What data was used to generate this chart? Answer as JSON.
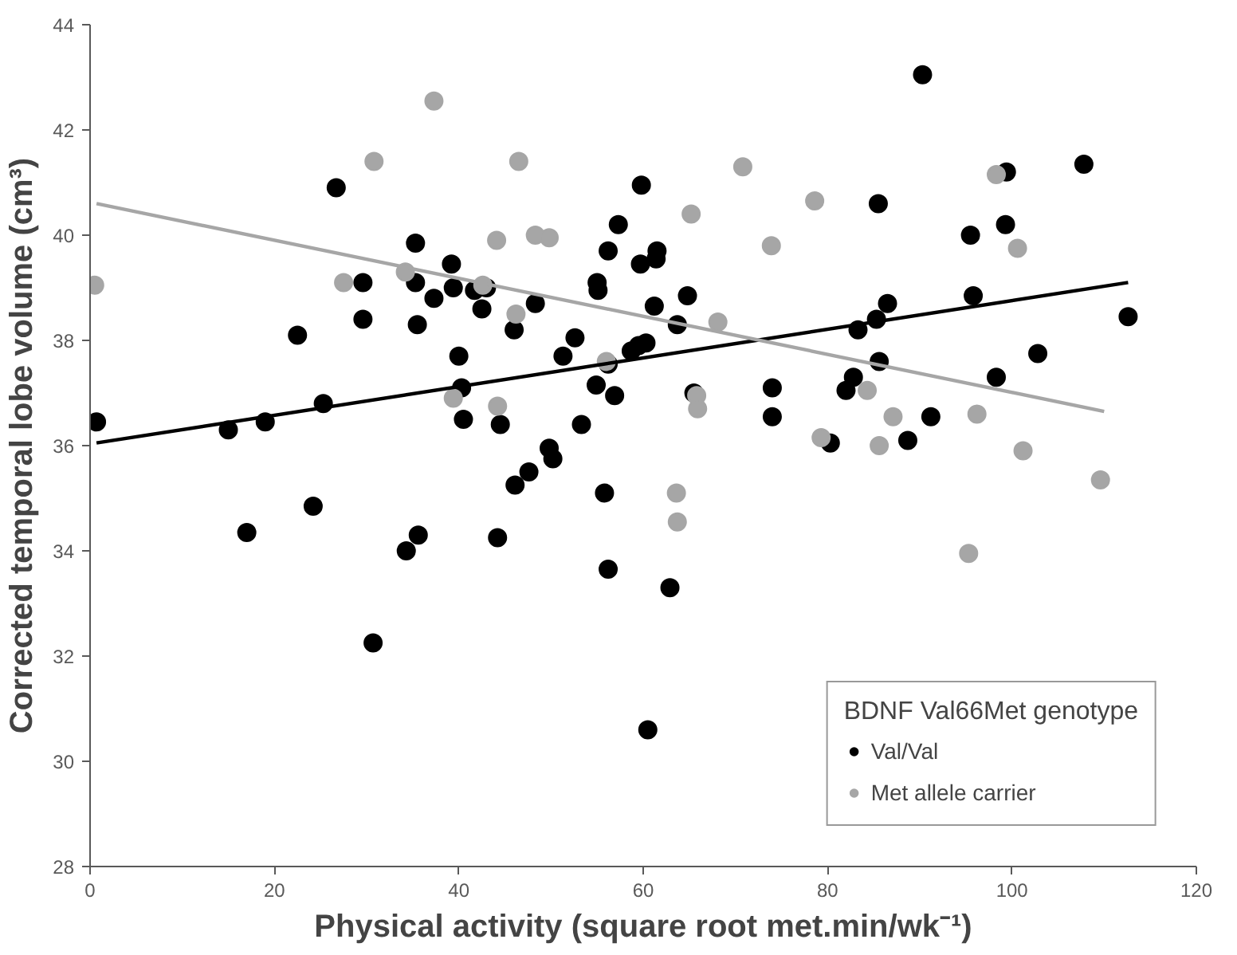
{
  "chart_data": {
    "type": "scatter",
    "xlabel": "Physical activity (square root met.min/wk⁻¹)",
    "ylabel": "Corrected temporal lobe volume (cm³)",
    "legend_title": "BDNF Val66Met genotype",
    "legend": "bottom right",
    "grid": false,
    "marker": "circle",
    "xlim": [
      0,
      120
    ],
    "xticks": [
      0,
      20,
      40,
      60,
      80,
      100,
      120
    ],
    "ylim": [
      28,
      44
    ],
    "yticks": [
      28,
      30,
      32,
      34,
      36,
      38,
      40,
      42,
      44
    ],
    "series": [
      {
        "name": "Val/Val",
        "color": "#000000",
        "x": [
          0.7,
          15,
          17,
          19,
          22.5,
          24.2,
          25.3,
          26.7,
          29.6,
          29.6,
          30.7,
          34.3,
          35.3,
          35.3,
          35.5,
          35.6,
          37.3,
          39.2,
          39.4,
          40,
          40.3,
          40.5,
          41.7,
          42.5,
          43,
          44.2,
          44.5,
          46,
          46.1,
          47.6,
          48.3,
          49.8,
          50.2,
          51.3,
          52.6,
          53.3,
          54.9,
          55,
          55.1,
          55.8,
          56.2,
          56.2,
          56.2,
          56.9,
          57.3,
          58.7,
          59.5,
          59.7,
          59.8,
          60.3,
          60.5,
          61.2,
          61.4,
          61.5,
          62.9,
          63.7,
          64.8,
          65.5,
          74,
          74,
          80.3,
          82,
          82.8,
          83.3,
          85.3,
          85.5,
          85.6,
          86.5,
          88.7,
          90.3,
          91.2,
          95.5,
          95.8,
          98.3,
          99.4,
          99.3,
          102.8,
          107.8,
          112.6
        ],
        "values": [
          36.45,
          36.3,
          34.35,
          36.45,
          38.1,
          34.85,
          36.8,
          40.9,
          39.1,
          38.4,
          32.25,
          34.0,
          39.85,
          39.1,
          38.3,
          34.3,
          38.8,
          39.45,
          39.0,
          37.7,
          37.1,
          36.5,
          38.95,
          38.6,
          39.0,
          34.25,
          36.4,
          38.2,
          35.25,
          35.5,
          38.7,
          35.95,
          35.75,
          37.7,
          38.05,
          36.4,
          37.15,
          39.1,
          38.95,
          35.1,
          37.55,
          39.7,
          33.65,
          36.95,
          40.2,
          37.8,
          37.9,
          39.45,
          40.95,
          37.95,
          30.6,
          38.65,
          39.55,
          39.7,
          33.3,
          38.3,
          38.85,
          37.0,
          36.55,
          37.1,
          36.05,
          37.05,
          37.3,
          38.2,
          38.4,
          40.6,
          37.6,
          38.7,
          36.1,
          43.05,
          36.55,
          40.0,
          38.85,
          37.3,
          41.2,
          40.2,
          37.75,
          41.35,
          38.45
        ]
      },
      {
        "name": "Met allele carrier",
        "color": "#a6a6a6",
        "x": [
          0.5,
          27.5,
          30.8,
          37.3,
          34.2,
          39.4,
          42.6,
          44.1,
          44.2,
          46.5,
          46.2,
          48.3,
          49.8,
          56,
          63.6,
          63.7,
          65.2,
          65.8,
          65.9,
          68.1,
          70.8,
          73.9,
          78.6,
          79.3,
          84.3,
          85.6,
          87.1,
          95.3,
          96.2,
          98.3,
          100.6,
          101.2,
          109.6
        ],
        "values": [
          39.05,
          39.1,
          41.4,
          42.55,
          39.3,
          36.9,
          39.05,
          39.9,
          36.75,
          41.4,
          38.5,
          40.0,
          39.95,
          37.6,
          35.1,
          34.55,
          40.4,
          36.95,
          36.7,
          38.35,
          41.3,
          39.8,
          40.65,
          36.15,
          37.05,
          36.0,
          36.55,
          33.95,
          36.6,
          41.15,
          39.75,
          35.9,
          35.35
        ]
      },
      {
        "type": "line",
        "marker": "none",
        "color": "#000000",
        "x": [
          0.7,
          112.6
        ],
        "values": [
          36.05,
          39.1
        ]
      },
      {
        "type": "line",
        "marker": "none",
        "color": "#a6a6a6",
        "x": [
          0.7,
          110
        ],
        "values": [
          40.6,
          36.65
        ]
      }
    ]
  }
}
